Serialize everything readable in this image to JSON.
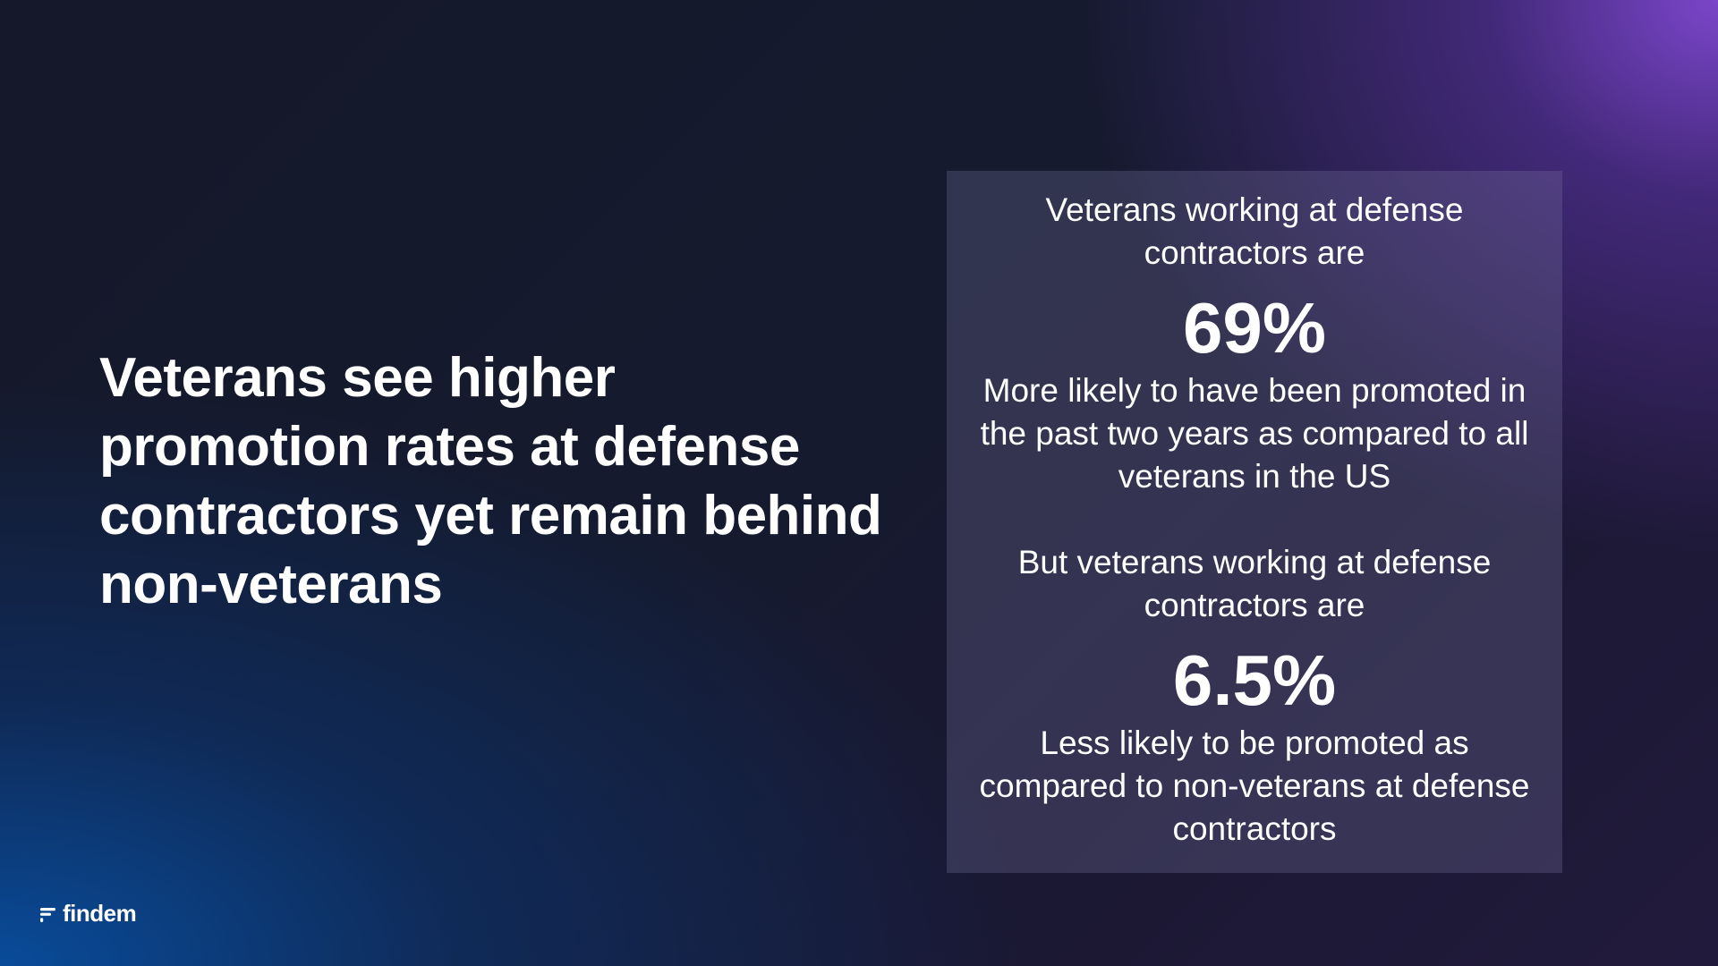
{
  "headline": "Veterans see higher promotion rates at defense contractors yet remain behind non-veterans",
  "stats": [
    {
      "intro": "Veterans working at defense contractors are",
      "value": "69%",
      "description": "More likely to have been promoted in the past two years as compared to all veterans in the US"
    },
    {
      "intro": "But veterans working at defense contractors are",
      "value": "6.5%",
      "description": "Less likely to be promoted as compared to non-veterans at defense contractors"
    }
  ],
  "brand": {
    "name": "findem",
    "icon": "findem-logo-mark"
  },
  "colors": {
    "text": "#ffffff",
    "accent_purple": "#7f48d2",
    "accent_blue": "#084ea0"
  }
}
